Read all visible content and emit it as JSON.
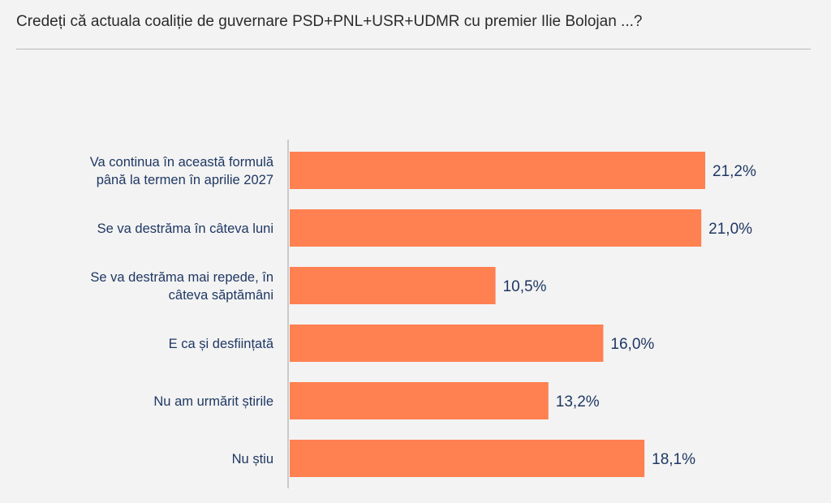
{
  "chart_data": {
    "type": "bar",
    "orientation": "horizontal",
    "title": "Credeți că actuala coaliție de guvernare PSD+PNL+USR+UDMR cu premier Ilie Bolojan ...?",
    "categories": [
      [
        "Va continua în această formulă",
        "până la termen în aprilie 2027"
      ],
      [
        "Se va destrăma în câteva luni"
      ],
      [
        "Se va destrăma mai repede, în",
        "câteva săptămâni"
      ],
      [
        "E ca și desființată"
      ],
      [
        "Nu am urmărit știrile"
      ],
      [
        "Nu știu"
      ]
    ],
    "values": [
      21.2,
      21.0,
      10.5,
      16.0,
      13.2,
      18.1
    ],
    "value_labels": [
      "21,2%",
      "21,0%",
      "10,5%",
      "16,0%",
      "13,2%",
      "18,1%"
    ],
    "xlim": [
      0,
      21.2
    ],
    "grid": false,
    "legend": "none",
    "bar_color": "#ff8050"
  }
}
